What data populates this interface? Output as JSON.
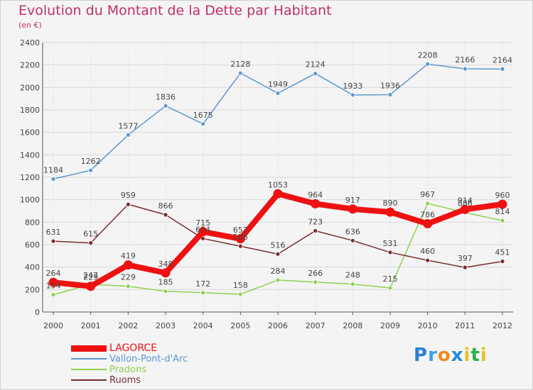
{
  "header": {
    "title": "Evolution du Montant de la Dette par Habitant",
    "subtitle": "(en €)"
  },
  "chart_data": {
    "type": "line",
    "title": "Evolution du Montant de la Dette par Habitant",
    "ylabel": "(en €)",
    "xlabel": "",
    "x": [
      "2000",
      "2001",
      "2002",
      "2003",
      "2004",
      "2005",
      "2006",
      "2007",
      "2008",
      "2009",
      "2010",
      "2011",
      "2012"
    ],
    "ylim": [
      0,
      2400
    ],
    "yticks": [
      0,
      200,
      400,
      600,
      800,
      1000,
      1200,
      1400,
      1600,
      1800,
      2000,
      2200,
      2400
    ],
    "grid": true,
    "legend_position": "bottom-left",
    "series": [
      {
        "name": "Vallon-Pont-d'Arc",
        "color": "#5b97d1",
        "values": [
          1184,
          1262,
          1577,
          1836,
          1675,
          2128,
          1949,
          2124,
          1933,
          1936,
          2208,
          2166,
          2164
        ]
      },
      {
        "name": "Pradons",
        "color": "#8fd14f",
        "values": [
          154,
          247,
          229,
          185,
          172,
          158,
          284,
          266,
          248,
          215,
          967,
          886,
          814
        ]
      },
      {
        "name": "Ruoms",
        "color": "#7a2d2d",
        "values": [
          631,
          615,
          959,
          866,
          654,
          586,
          516,
          723,
          636,
          531,
          460,
          397,
          451
        ]
      },
      {
        "name": "LAGORCE",
        "color": "#ee1111",
        "values": [
          264,
          229,
          419,
          348,
          715,
          652,
          1053,
          964,
          917,
          890,
          786,
          914,
          960
        ]
      }
    ]
  },
  "legend": {
    "items": [
      {
        "name": "LAGORCE",
        "color": "#ee1111"
      },
      {
        "name": "Vallon-Pont-d'Arc",
        "color": "#5b97d1"
      },
      {
        "name": "Pradons",
        "color": "#8fd14f"
      },
      {
        "name": "Ruoms",
        "color": "#7a2d2d"
      }
    ]
  },
  "logo": {
    "letters": [
      "P",
      "r",
      "o",
      "x",
      "i",
      "t",
      "i"
    ],
    "colors": [
      "#2a7fd4",
      "#3a9ee4",
      "#f08a1c",
      "#1c8fd8",
      "#e8c020",
      "#2bb04a",
      "#e8c020"
    ]
  }
}
